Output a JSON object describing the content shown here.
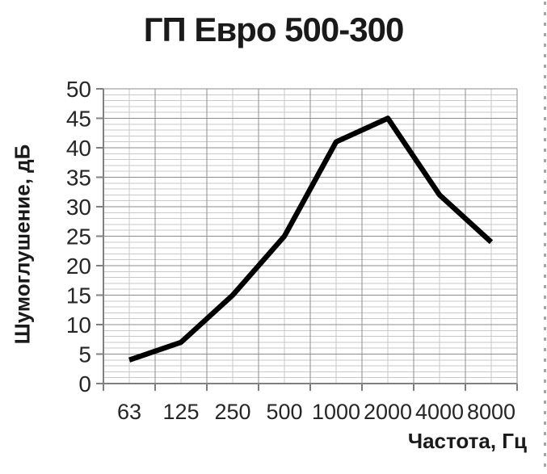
{
  "chart_data": {
    "type": "line",
    "title": "ГП Евро 500-300",
    "xlabel": "Частота, Гц",
    "ylabel": "Шумоглушение, дБ",
    "categories": [
      "63",
      "125",
      "250",
      "500",
      "1000",
      "2000",
      "4000",
      "8000"
    ],
    "values": [
      4,
      7,
      15,
      25,
      41,
      45,
      32,
      24
    ],
    "ylim": [
      0,
      50
    ],
    "y_ticks": [
      0,
      5,
      10,
      15,
      20,
      25,
      30,
      35,
      40,
      45,
      50
    ],
    "y_minor_step": 1,
    "grid": "major+minor horizontal and vertical",
    "legend": "none",
    "line_color": "#000000",
    "major_grid_color": "#8c8c8c",
    "minor_grid_color": "#c9c9c9",
    "axis_color": "#808080",
    "tick_label_color": "#262626"
  },
  "decorations": {
    "right_edge_dashed_border": true,
    "dash_color": "#a6a6a6"
  }
}
